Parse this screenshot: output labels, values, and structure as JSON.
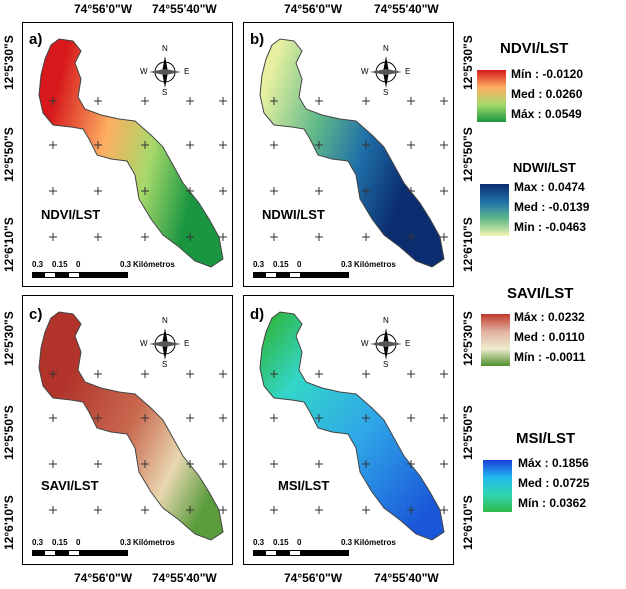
{
  "axes": {
    "top_lon": [
      "74°56'0\"W",
      "74°55'40\"W"
    ],
    "bottom_lon": [
      "74°56'0\"W",
      "74°55'40\"W"
    ],
    "left_lat": [
      "12°5'30\"S",
      "12°5'50\"S",
      "12°6'10\"S",
      "12°5'30\"S",
      "12°5'50\"S",
      "12°6'10\"S"
    ],
    "right_lat": [
      "12°5'30\"S",
      "12°5'50\"S",
      "12°6'10\"S",
      "12°5'30\"S",
      "12°5'50\"S",
      "12°6'10\"S"
    ]
  },
  "panels": [
    {
      "letter": "a)",
      "title": "NDVI/LST",
      "colors": [
        "#d7191c",
        "#fdae61",
        "#a6d96a",
        "#1a9641"
      ]
    },
    {
      "letter": "b)",
      "title": "NDWI/LST",
      "colors": [
        "#0b2c6e",
        "#1f6fa8",
        "#5fb88a",
        "#e6f0a0"
      ]
    },
    {
      "letter": "c)",
      "title": "SAVI/LST",
      "colors": [
        "#b2332a",
        "#c96a50",
        "#e8d7b0",
        "#5b9c3d"
      ]
    },
    {
      "letter": "d)",
      "title": "MSI/LST",
      "colors": [
        "#1a56d8",
        "#2fa6e8",
        "#33d6c9",
        "#2fb84a"
      ]
    }
  ],
  "scalebar": {
    "ticks": [
      "0.3",
      "0.15",
      "0",
      "0.3"
    ],
    "unit": "Kilómetros"
  },
  "compass": {
    "n": "N",
    "s": "S",
    "e": "E",
    "w": "W"
  },
  "legends": [
    {
      "title": "NDVI/LST",
      "items": [
        "Mín : -0.0120",
        "Med : 0.0260",
        "Máx : 0.0549"
      ],
      "colors": [
        "#d7191c",
        "#fdae61",
        "#a6d96a",
        "#1a9641"
      ]
    },
    {
      "title": "NDWI/LST",
      "items": [
        "Max : 0.0474",
        "Med : -0.0139",
        "Min : -0.0463"
      ],
      "colors": [
        "#0b2c6e",
        "#1f6fa8",
        "#5fb88a",
        "#f2f5b0"
      ]
    },
    {
      "title": "SAVI/LST",
      "items": [
        "Máx : 0.0232",
        "Med : 0.0110",
        "Mín : -0.0011"
      ],
      "colors": [
        "#c0392b",
        "#e0b0a0",
        "#f0ecd0",
        "#4f8f2f"
      ]
    },
    {
      "title": "MSI/LST",
      "items": [
        "Máx : 0.1856",
        "Med : 0.0725",
        "Mín : 0.0362"
      ],
      "colors": [
        "#1a3fd8",
        "#22b8f0",
        "#30d6b0",
        "#2fb84a"
      ]
    }
  ]
}
